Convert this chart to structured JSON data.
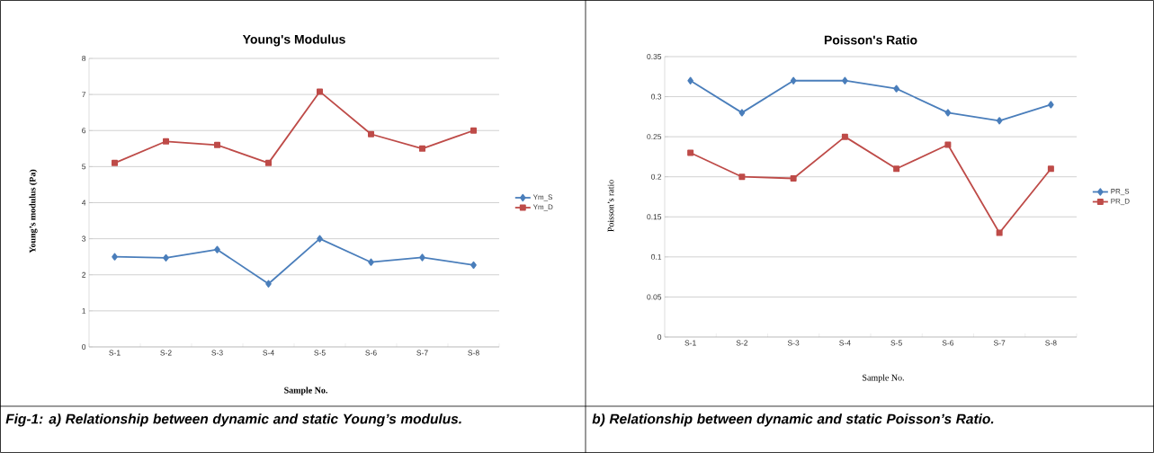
{
  "chart_data": [
    {
      "type": "line",
      "title": "Young's Modulus",
      "ylabel": "Young’s modulus (Pa)",
      "xlabel": "Sample No.",
      "categories": [
        "S-1",
        "S-2",
        "S-3",
        "S-4",
        "S-5",
        "S-6",
        "S-7",
        "S-8"
      ],
      "series": [
        {
          "name": "Ym_S",
          "color": "#4a7ebb",
          "marker": "diamond",
          "values": [
            2.5,
            2.47,
            2.7,
            1.75,
            3.0,
            2.35,
            2.48,
            2.27
          ]
        },
        {
          "name": "Ym_D",
          "color": "#be4b48",
          "marker": "square",
          "values": [
            5.1,
            5.7,
            5.6,
            5.1,
            7.08,
            5.9,
            5.5,
            6.0
          ]
        }
      ],
      "ylim": [
        0,
        8
      ],
      "yticks": [
        0,
        1,
        2,
        3,
        4,
        5,
        6,
        7,
        8
      ],
      "grid": "y",
      "legend": "right",
      "annotations": [
        "Fig-1: a) Relationship between dynamic and static Young’s modulus."
      ]
    },
    {
      "type": "line",
      "title": "Poisson's Ratio",
      "ylabel": "Poisson’s ratio",
      "xlabel": "Sample No.",
      "categories": [
        "S-1",
        "S-2",
        "S-3",
        "S-4",
        "S-5",
        "S-6",
        "S-7",
        "S-8"
      ],
      "series": [
        {
          "name": "PR_S",
          "color": "#4a7ebb",
          "marker": "diamond",
          "values": [
            0.32,
            0.28,
            0.32,
            0.32,
            0.31,
            0.28,
            0.27,
            0.29
          ]
        },
        {
          "name": "PR_D",
          "color": "#be4b48",
          "marker": "square",
          "values": [
            0.23,
            0.2,
            0.198,
            0.25,
            0.21,
            0.24,
            0.13,
            0.21
          ]
        }
      ],
      "ylim": [
        0,
        0.35
      ],
      "yticks": [
        0,
        0.05,
        0.1,
        0.15,
        0.2,
        0.25,
        0.3,
        0.35
      ],
      "grid": "y",
      "legend": "right",
      "annotations": [
        "b) Relationship between dynamic and static Poisson’s Ratio."
      ]
    }
  ]
}
